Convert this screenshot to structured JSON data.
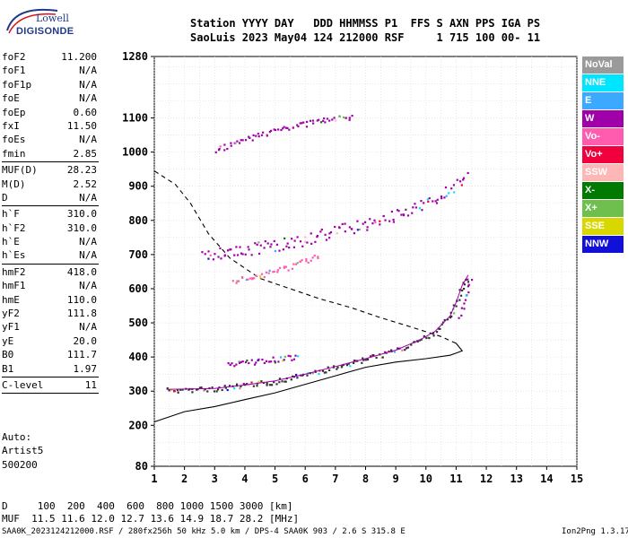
{
  "header": {
    "line1": "Station YYYY DAY   DDD HHMMSS P1  FFS S AXN PPS IGA PS",
    "line2": "SaoLuis 2023 May04 124 212000 RSF     1 715 100 00- 11"
  },
  "logo": {
    "top": "Lowell",
    "bottom": "DIGISONDE"
  },
  "params": [
    {
      "k": "foF2",
      "v": "11.200"
    },
    {
      "k": "foF1",
      "v": "N/A"
    },
    {
      "k": "foF1p",
      "v": "N/A"
    },
    {
      "k": "foE",
      "v": "N/A"
    },
    {
      "k": "foEp",
      "v": "0.60"
    },
    {
      "k": "fxI",
      "v": "11.50"
    },
    {
      "k": "foEs",
      "v": "N/A"
    },
    {
      "k": "fmin",
      "v": "2.85"
    },
    {
      "sep": true
    },
    {
      "k": "MUF(D)",
      "v": "28.23"
    },
    {
      "k": "M(D)",
      "v": "2.52"
    },
    {
      "k": "D",
      "v": "N/A"
    },
    {
      "sep": true
    },
    {
      "k": "h`F",
      "v": "310.0"
    },
    {
      "k": "h`F2",
      "v": "310.0"
    },
    {
      "k": "h`E",
      "v": "N/A"
    },
    {
      "k": "h`Es",
      "v": "N/A"
    },
    {
      "sep": true
    },
    {
      "k": "hmF2",
      "v": "418.0"
    },
    {
      "k": "hmF1",
      "v": "N/A"
    },
    {
      "k": "hmE",
      "v": "110.0"
    },
    {
      "k": "yF2",
      "v": "111.8"
    },
    {
      "k": "yF1",
      "v": "N/A"
    },
    {
      "k": "yE",
      "v": "20.0"
    },
    {
      "k": "B0",
      "v": "111.7"
    },
    {
      "k": "B1",
      "v": "1.97"
    },
    {
      "sep": true
    },
    {
      "k": "C-level",
      "v": "11"
    },
    {
      "sep": true
    }
  ],
  "notes": [
    "Auto:",
    "Artist5",
    "500200"
  ],
  "bottom": {
    "d_line": "D     100  200  400  600  800 1000 1500 3000 [km]",
    "muf_line": "MUF  11.5 11.6 12.0 12.7 13.6 14.9 18.7 28.2 [MHz]",
    "file_line": "SAA0K_2023124212000.RSF / 280fx256h 50 kHz 5.0 km / DPS-4 SAA0K 903 / 2.6 S 315.8 E",
    "version": "Ion2Png 1.3.17"
  },
  "legend": [
    {
      "label": "NoVal",
      "bg": "#9a9a9a",
      "fg": "#ffffff"
    },
    {
      "label": "NNE",
      "bg": "#00e5ff",
      "fg": "#ffffff"
    },
    {
      "label": "E",
      "bg": "#3aa9ff",
      "fg": "#ffffff"
    },
    {
      "label": "W",
      "bg": "#a000a8",
      "fg": "#ffffff"
    },
    {
      "label": "Vo-",
      "bg": "#ff5cb0",
      "fg": "#ffffff"
    },
    {
      "label": "Vo+",
      "bg": "#f0003c",
      "fg": "#ffffff"
    },
    {
      "label": "SSW",
      "bg": "#ffb6b6",
      "fg": "#ffffff"
    },
    {
      "label": "X-",
      "bg": "#007a00",
      "fg": "#ffffff"
    },
    {
      "label": "X+",
      "bg": "#6fbf4f",
      "fg": "#ffffff"
    },
    {
      "label": "SSE",
      "bg": "#d8d800",
      "fg": "#ffffff"
    },
    {
      "label": "NNW",
      "bg": "#1010d8",
      "fg": "#ffffff"
    }
  ],
  "chart_data": {
    "type": "scatter",
    "title": "",
    "xlabel": "",
    "ylabel": "",
    "xlim": [
      1,
      15
    ],
    "ylim": [
      80,
      1280
    ],
    "x_ticks": [
      "1",
      "2",
      "3",
      "4",
      "5",
      "6",
      "7",
      "8",
      "9",
      "10",
      "11",
      "12",
      "13",
      "14",
      "15"
    ],
    "y_ticks": [
      "80",
      "200",
      "300",
      "400",
      "500",
      "600",
      "700",
      "800",
      "900",
      "1000",
      "1100",
      "1280"
    ],
    "grid": true,
    "traces": [
      {
        "name": "O-trace F2",
        "color": "#333333",
        "points": [
          [
            1.4,
            305
          ],
          [
            2,
            306
          ],
          [
            3,
            308
          ],
          [
            4,
            318
          ],
          [
            5,
            330
          ],
          [
            6,
            350
          ],
          [
            7,
            372
          ],
          [
            8,
            395
          ],
          [
            9,
            420
          ],
          [
            9.8,
            450
          ],
          [
            10.3,
            475
          ],
          [
            10.8,
            520
          ],
          [
            11.0,
            560
          ],
          [
            11.2,
            610
          ],
          [
            11.4,
            640
          ]
        ]
      },
      {
        "name": "F2 lower band",
        "color": "#a000a8",
        "points": [
          [
            3.4,
            380
          ],
          [
            4,
            385
          ],
          [
            5,
            395
          ],
          [
            5.8,
            402
          ]
        ]
      },
      {
        "name": "F2 second hop",
        "color": "#a000a8",
        "points": [
          [
            2.6,
            700
          ],
          [
            3,
            705
          ],
          [
            4,
            715
          ],
          [
            5,
            730
          ],
          [
            6,
            745
          ],
          [
            7,
            770
          ],
          [
            8,
            790
          ],
          [
            9,
            820
          ],
          [
            10,
            850
          ],
          [
            10.5,
            875
          ],
          [
            11,
            910
          ],
          [
            11.4,
            950
          ]
        ]
      },
      {
        "name": "second hop lower",
        "color": "#ff5cb0",
        "points": [
          [
            3.6,
            625
          ],
          [
            4.5,
            640
          ],
          [
            5.5,
            665
          ],
          [
            6.5,
            700
          ]
        ]
      },
      {
        "name": "third hop",
        "color": "#a000a8",
        "points": [
          [
            3,
            1005
          ],
          [
            4,
            1040
          ],
          [
            5,
            1065
          ],
          [
            6,
            1085
          ],
          [
            7,
            1100
          ],
          [
            7.6,
            1105
          ]
        ]
      },
      {
        "name": "X-trace",
        "color": "#a000a8",
        "points": [
          [
            11.1,
            520
          ],
          [
            11.3,
            580
          ],
          [
            11.5,
            630
          ]
        ]
      }
    ],
    "profile": [
      [
        1,
        210
      ],
      [
        2,
        240
      ],
      [
        3,
        255
      ],
      [
        4,
        275
      ],
      [
        5,
        295
      ],
      [
        6,
        320
      ],
      [
        7,
        345
      ],
      [
        8,
        370
      ],
      [
        9,
        385
      ],
      [
        10,
        395
      ],
      [
        10.8,
        405
      ],
      [
        11.2,
        418
      ],
      [
        11.0,
        440
      ],
      [
        10.5,
        460
      ],
      [
        9.5,
        488
      ],
      [
        8.5,
        515
      ],
      [
        7.5,
        545
      ],
      [
        6.5,
        570
      ],
      [
        5.5,
        600
      ],
      [
        4.5,
        630
      ],
      [
        3.5,
        690
      ],
      [
        2.8,
        760
      ],
      [
        2.2,
        850
      ],
      [
        1.7,
        905
      ],
      [
        1,
        945
      ]
    ],
    "profile_dashed_from_index": 12
  }
}
